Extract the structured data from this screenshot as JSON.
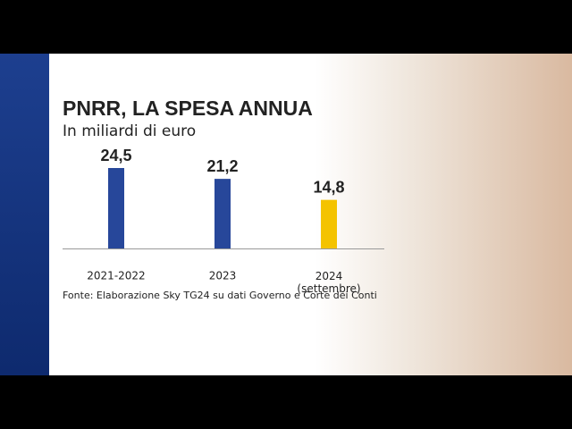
{
  "chart_data": {
    "type": "bar",
    "title": "PNRR, LA SPESA ANNUA",
    "subtitle": "In miliardi di euro",
    "categories": [
      "2021-2022",
      "2023",
      "2024 (settembre)"
    ],
    "values": [
      24.5,
      21.2,
      14.8
    ],
    "value_labels": [
      "24,5",
      "21,2",
      "14,8"
    ],
    "colors": [
      "#27479a",
      "#27479a",
      "#f4c300"
    ],
    "source": "Fonte: Elaborazione Sky TG24 su dati Governo e Corte dei Conti"
  }
}
